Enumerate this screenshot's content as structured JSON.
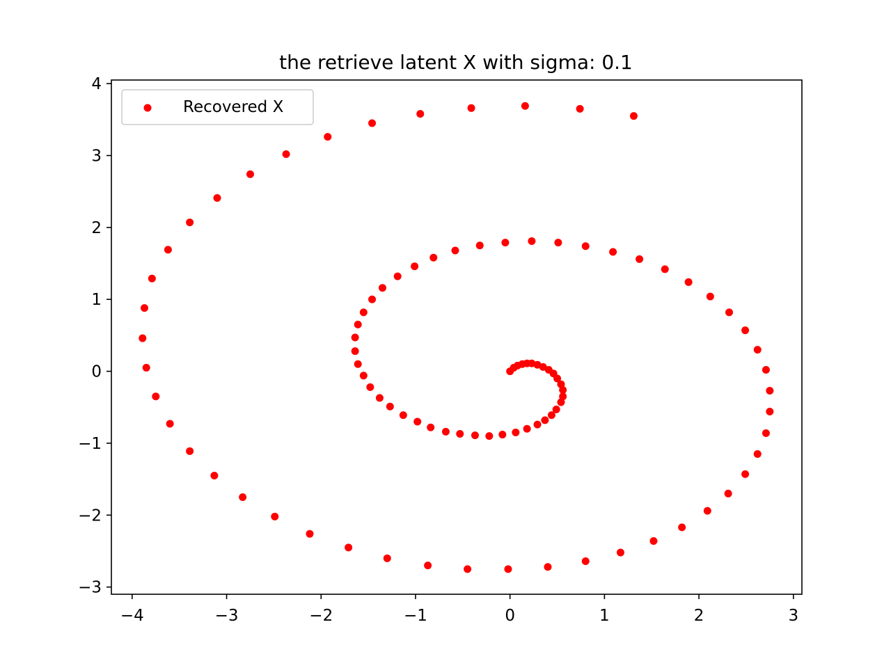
{
  "chart_data": {
    "type": "scatter",
    "title": "the retrieve latent X with sigma: 0.1",
    "xlabel": "",
    "ylabel": "",
    "xlim": [
      -4.22,
      3.09
    ],
    "ylim": [
      -3.1,
      4.05
    ],
    "xticks": [
      -4,
      -3,
      -2,
      -1,
      0,
      1,
      2,
      3
    ],
    "xtick_labels": [
      "−4",
      "−3",
      "−2",
      "−1",
      "0",
      "1",
      "2",
      "3"
    ],
    "yticks": [
      -3,
      -2,
      -1,
      0,
      1,
      2,
      3,
      4
    ],
    "ytick_labels": [
      "−3",
      "−2",
      "−1",
      "0",
      "1",
      "2",
      "3",
      "4"
    ],
    "grid": false,
    "legend_position": "top-left",
    "series": [
      {
        "name": "Recovered X",
        "color": "#ff0000",
        "marker": "circle",
        "points": [
          [
            0.0,
            0.0
          ],
          [
            0.04,
            0.05
          ],
          [
            0.08,
            0.08
          ],
          [
            0.13,
            0.1
          ],
          [
            0.18,
            0.11
          ],
          [
            0.23,
            0.11
          ],
          [
            0.29,
            0.09
          ],
          [
            0.35,
            0.06
          ],
          [
            0.41,
            0.02
          ],
          [
            0.46,
            -0.03
          ],
          [
            0.5,
            -0.1
          ],
          [
            0.54,
            -0.18
          ],
          [
            0.56,
            -0.26
          ],
          [
            0.56,
            -0.35
          ],
          [
            0.54,
            -0.43
          ],
          [
            0.49,
            -0.53
          ],
          [
            0.44,
            -0.61
          ],
          [
            0.37,
            -0.68
          ],
          [
            0.29,
            -0.74
          ],
          [
            0.18,
            -0.8
          ],
          [
            0.06,
            -0.85
          ],
          [
            -0.08,
            -0.88
          ],
          [
            -0.22,
            -0.9
          ],
          [
            -0.37,
            -0.89
          ],
          [
            -0.53,
            -0.87
          ],
          [
            -0.68,
            -0.84
          ],
          [
            -0.84,
            -0.78
          ],
          [
            -0.98,
            -0.7
          ],
          [
            -1.13,
            -0.61
          ],
          [
            -1.27,
            -0.49
          ],
          [
            -1.38,
            -0.37
          ],
          [
            -1.48,
            -0.22
          ],
          [
            -1.55,
            -0.06
          ],
          [
            -1.61,
            0.1
          ],
          [
            -1.64,
            0.28
          ],
          [
            -1.64,
            0.47
          ],
          [
            -1.61,
            0.65
          ],
          [
            -1.55,
            0.82
          ],
          [
            -1.46,
            1.0
          ],
          [
            -1.35,
            1.16
          ],
          [
            -1.19,
            1.32
          ],
          [
            -1.01,
            1.46
          ],
          [
            -0.81,
            1.58
          ],
          [
            -0.58,
            1.68
          ],
          [
            -0.32,
            1.75
          ],
          [
            -0.05,
            1.79
          ],
          [
            0.23,
            1.81
          ],
          [
            0.51,
            1.79
          ],
          [
            0.8,
            1.74
          ],
          [
            1.09,
            1.66
          ],
          [
            1.37,
            1.56
          ],
          [
            1.64,
            1.42
          ],
          [
            1.89,
            1.24
          ],
          [
            2.12,
            1.04
          ],
          [
            2.32,
            0.82
          ],
          [
            2.49,
            0.57
          ],
          [
            2.62,
            0.3
          ],
          [
            2.71,
            0.02
          ],
          [
            2.75,
            -0.27
          ],
          [
            2.75,
            -0.56
          ],
          [
            2.71,
            -0.86
          ],
          [
            2.62,
            -1.15
          ],
          [
            2.49,
            -1.43
          ],
          [
            2.31,
            -1.7
          ],
          [
            2.09,
            -1.94
          ],
          [
            1.82,
            -2.17
          ],
          [
            1.52,
            -2.36
          ],
          [
            1.17,
            -2.52
          ],
          [
            0.8,
            -2.64
          ],
          [
            0.4,
            -2.72
          ],
          [
            -0.02,
            -2.75
          ],
          [
            -0.45,
            -2.75
          ],
          [
            -0.87,
            -2.7
          ],
          [
            -1.3,
            -2.6
          ],
          [
            -1.71,
            -2.45
          ],
          [
            -2.12,
            -2.26
          ],
          [
            -2.49,
            -2.02
          ],
          [
            -2.83,
            -1.75
          ],
          [
            -3.13,
            -1.45
          ],
          [
            -3.39,
            -1.11
          ],
          [
            -3.6,
            -0.73
          ],
          [
            -3.75,
            -0.35
          ],
          [
            -3.85,
            0.05
          ],
          [
            -3.89,
            0.46
          ],
          [
            -3.87,
            0.88
          ],
          [
            -3.79,
            1.29
          ],
          [
            -3.62,
            1.69
          ],
          [
            -3.39,
            2.07
          ],
          [
            -3.1,
            2.41
          ],
          [
            -2.75,
            2.74
          ],
          [
            -2.37,
            3.02
          ],
          [
            -1.93,
            3.26
          ],
          [
            -1.46,
            3.45
          ],
          [
            -0.95,
            3.58
          ],
          [
            -0.41,
            3.66
          ],
          [
            0.16,
            3.69
          ],
          [
            0.74,
            3.65
          ],
          [
            1.31,
            3.55
          ]
        ]
      }
    ]
  }
}
